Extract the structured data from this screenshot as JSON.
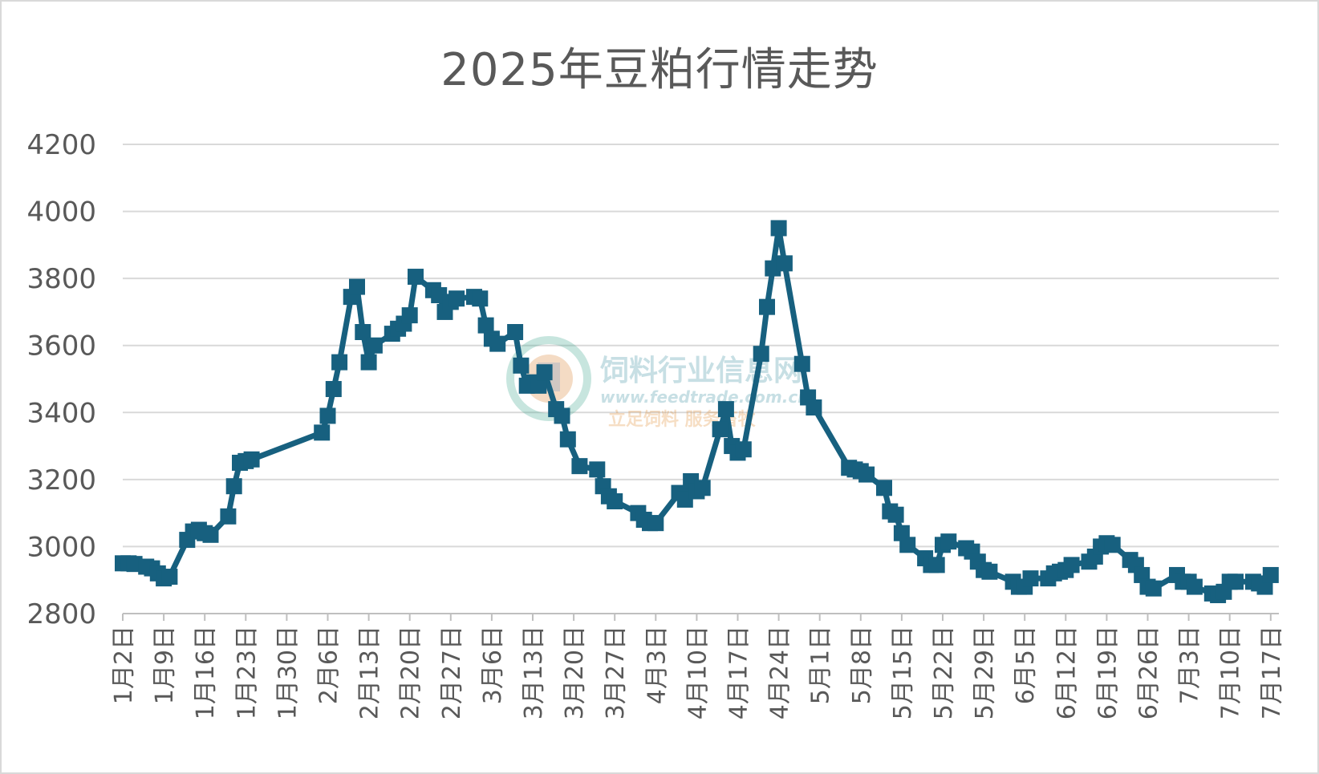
{
  "chart_data": {
    "type": "line",
    "title": "2025年豆粕行情走势",
    "xlabel": "",
    "ylabel": "",
    "ylim": [
      2800,
      4200
    ],
    "yticks": [
      2800,
      3000,
      3200,
      3400,
      3600,
      3800,
      4000,
      4200
    ],
    "grid": true,
    "legend": "none",
    "tick_labels": [
      "1月2日",
      "1月9日",
      "1月16日",
      "1月23日",
      "1月30日",
      "2月6日",
      "2月13日",
      "2月20日",
      "2月27日",
      "3月6日",
      "3月13日",
      "3月20日",
      "3月27日",
      "4月3日",
      "4月10日",
      "4月17日",
      "4月24日",
      "5月1日",
      "5月8日",
      "5月15日",
      "5月22日",
      "5月29日",
      "6月5日",
      "6月12日",
      "6月19日",
      "6月26日",
      "7月3日",
      "7月10日",
      "7月17日"
    ],
    "x_start": "1月2日",
    "series": [
      {
        "color": "#17607f",
        "marker": "square",
        "points": [
          [
            "1月2日",
            2950
          ],
          [
            "1月3日",
            2950
          ],
          [
            "1月4日",
            2948
          ],
          [
            "1月6日",
            2940
          ],
          [
            "1月7日",
            2935
          ],
          [
            "1月8日",
            2920
          ],
          [
            "1月9日",
            2905
          ],
          [
            "1月10日",
            2910
          ],
          [
            "1月13日",
            3020
          ],
          [
            "1月14日",
            3045
          ],
          [
            "1月15日",
            3050
          ],
          [
            "1月16日",
            3040
          ],
          [
            "1月17日",
            3035
          ],
          [
            "1月20日",
            3090
          ],
          [
            "1月21日",
            3180
          ],
          [
            "1月22日",
            3250
          ],
          [
            "1月23日",
            3255
          ],
          [
            "1月24日",
            3260
          ],
          [
            "2月5日",
            3340
          ],
          [
            "2月6日",
            3390
          ],
          [
            "2月7日",
            3470
          ],
          [
            "2月8日",
            3550
          ],
          [
            "2月10日",
            3745
          ],
          [
            "2月11日",
            3775
          ],
          [
            "2月12日",
            3640
          ],
          [
            "2月13日",
            3550
          ],
          [
            "2月14日",
            3600
          ],
          [
            "2月17日",
            3635
          ],
          [
            "2月18日",
            3650
          ],
          [
            "2月19日",
            3665
          ],
          [
            "2月20日",
            3690
          ],
          [
            "2月21日",
            3805
          ],
          [
            "2月24日",
            3765
          ],
          [
            "2月25日",
            3750
          ],
          [
            "2月26日",
            3700
          ],
          [
            "2月27日",
            3730
          ],
          [
            "2月28日",
            3740
          ],
          [
            "3月3日",
            3745
          ],
          [
            "3月4日",
            3740
          ],
          [
            "3月5日",
            3660
          ],
          [
            "3月6日",
            3620
          ],
          [
            "3月7日",
            3605
          ],
          [
            "3月10日",
            3640
          ],
          [
            "3月11日",
            3540
          ],
          [
            "3月12日",
            3480
          ],
          [
            "3月13日",
            3490
          ],
          [
            "3月14日",
            3480
          ],
          [
            "3月15日",
            3520
          ],
          [
            "3月17日",
            3410
          ],
          [
            "3月18日",
            3390
          ],
          [
            "3月19日",
            3320
          ],
          [
            "3月21日",
            3240
          ],
          [
            "3月24日",
            3230
          ],
          [
            "3月25日",
            3180
          ],
          [
            "3月26日",
            3150
          ],
          [
            "3月27日",
            3135
          ],
          [
            "3月31日",
            3100
          ],
          [
            "4月1日",
            3080
          ],
          [
            "4月2日",
            3070
          ],
          [
            "4月3日",
            3070
          ],
          [
            "4月7日",
            3160
          ],
          [
            "4月8日",
            3140
          ],
          [
            "4月9日",
            3195
          ],
          [
            "4月10日",
            3165
          ],
          [
            "4月11日",
            3175
          ],
          [
            "4月14日",
            3350
          ],
          [
            "4月15日",
            3410
          ],
          [
            "4月16日",
            3300
          ],
          [
            "4月17日",
            3280
          ],
          [
            "4月18日",
            3290
          ],
          [
            "4月21日",
            3575
          ],
          [
            "4月22日",
            3715
          ],
          [
            "4月23日",
            3830
          ],
          [
            "4月24日",
            3950
          ],
          [
            "4月25日",
            3845
          ],
          [
            "4月28日",
            3545
          ],
          [
            "4月29日",
            3445
          ],
          [
            "4月30日",
            3415
          ],
          [
            "5月6日",
            3235
          ],
          [
            "5月7日",
            3230
          ],
          [
            "5月8日",
            3225
          ],
          [
            "5月9日",
            3215
          ],
          [
            "5月12日",
            3175
          ],
          [
            "5月13日",
            3105
          ],
          [
            "5月14日",
            3095
          ],
          [
            "5月15日",
            3040
          ],
          [
            "5月16日",
            3005
          ],
          [
            "5月19日",
            2965
          ],
          [
            "5月20日",
            2945
          ],
          [
            "5月21日",
            2945
          ],
          [
            "5月22日",
            3005
          ],
          [
            "5月23日",
            3015
          ],
          [
            "5月26日",
            2995
          ],
          [
            "5月27日",
            2985
          ],
          [
            "5月28日",
            2955
          ],
          [
            "5月29日",
            2930
          ],
          [
            "5月30日",
            2925
          ],
          [
            "6月3日",
            2895
          ],
          [
            "6月4日",
            2880
          ],
          [
            "6月5日",
            2880
          ],
          [
            "6月6日",
            2905
          ],
          [
            "6月9日",
            2905
          ],
          [
            "6月10日",
            2920
          ],
          [
            "6月11日",
            2925
          ],
          [
            "6月12日",
            2930
          ],
          [
            "6月13日",
            2945
          ],
          [
            "6月16日",
            2955
          ],
          [
            "6月17日",
            2970
          ],
          [
            "6月18日",
            3000
          ],
          [
            "6月19日",
            3010
          ],
          [
            "6月20日",
            3005
          ],
          [
            "6月23日",
            2960
          ],
          [
            "6月24日",
            2945
          ],
          [
            "6月25日",
            2915
          ],
          [
            "6月26日",
            2880
          ],
          [
            "6月27日",
            2875
          ],
          [
            "7月1日",
            2915
          ],
          [
            "7月2日",
            2895
          ],
          [
            "7月3日",
            2895
          ],
          [
            "7月4日",
            2880
          ],
          [
            "7月7日",
            2860
          ],
          [
            "7月8日",
            2855
          ],
          [
            "7月9日",
            2865
          ],
          [
            "7月10日",
            2895
          ],
          [
            "7月11日",
            2895
          ],
          [
            "7月14日",
            2895
          ],
          [
            "7月15日",
            2890
          ],
          [
            "7月16日",
            2880
          ],
          [
            "7月17日",
            2915
          ]
        ]
      }
    ]
  },
  "watermark": {
    "line1": "饲料行业信息网",
    "line2": "www.feedtrade.com.cn",
    "line3": "立足饲料  服务畜牧"
  }
}
